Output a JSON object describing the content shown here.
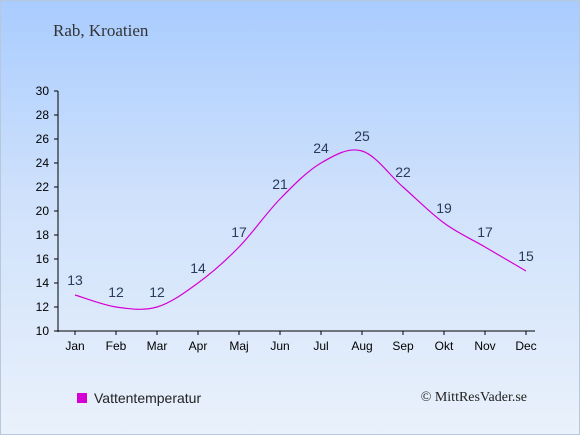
{
  "header": {
    "title": "Rab, Kroatien"
  },
  "legend": {
    "label": "Vattentemperatur",
    "color": "#d400d4"
  },
  "footer": {
    "credit": "© MittResVader.se"
  },
  "chart_data": {
    "type": "line",
    "categories": [
      "Jan",
      "Feb",
      "Mar",
      "Apr",
      "Maj",
      "Jun",
      "Jul",
      "Aug",
      "Sep",
      "Okt",
      "Nov",
      "Dec"
    ],
    "series": [
      {
        "name": "Vattentemperatur",
        "color": "#d400d4",
        "values": [
          13,
          12,
          12,
          14,
          17,
          21,
          24,
          25,
          22,
          19,
          17,
          15
        ]
      }
    ],
    "ylim": [
      10,
      30
    ],
    "yticks": [
      10,
      12,
      14,
      16,
      18,
      20,
      22,
      24,
      26,
      28,
      30
    ],
    "grid": false,
    "legend_position": "bottom-left"
  }
}
